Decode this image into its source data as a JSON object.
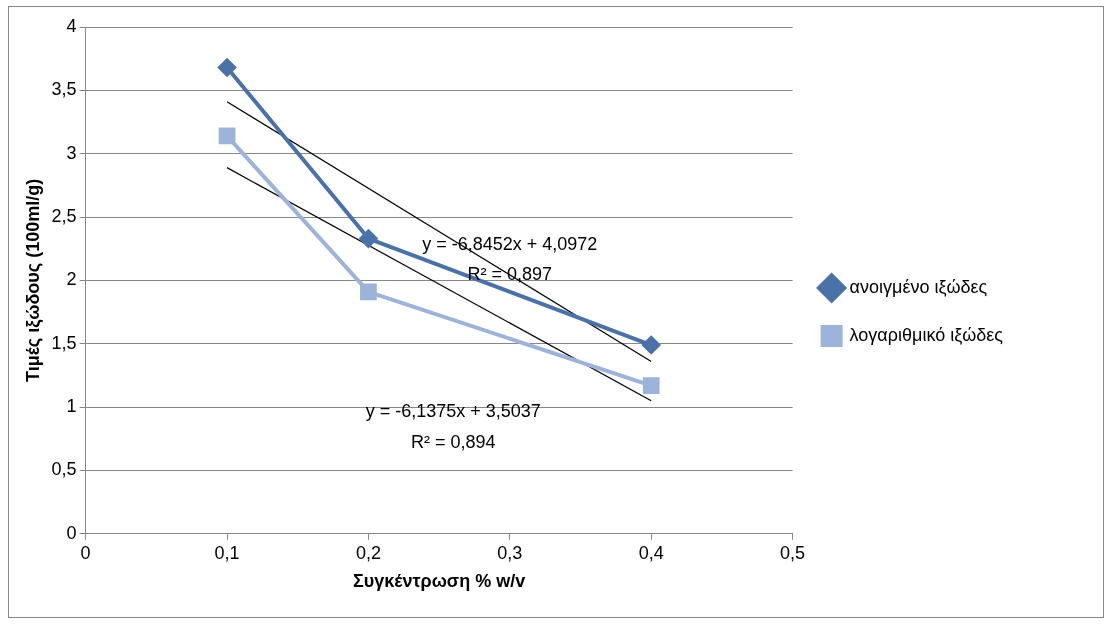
{
  "chart_data": {
    "type": "line",
    "xlabel": "Συγκέντρωση % w/v",
    "ylabel": "Τιμές ιξώδους (100ml/g)",
    "xlim": [
      0,
      0.5
    ],
    "xticks": [
      0,
      {
        "value": 0.1,
        "label": "0,1"
      },
      {
        "value": 0.2,
        "label": "0,2"
      },
      {
        "value": 0.3,
        "label": "0,3"
      },
      {
        "value": 0.4,
        "label": "0,4"
      },
      {
        "value": 0.5,
        "label": "0,5"
      }
    ],
    "ylim": [
      0,
      4
    ],
    "yticks": [
      0,
      {
        "value": 0.5,
        "label": "0,5"
      },
      1,
      {
        "value": 1.5,
        "label": "1,5"
      },
      2,
      {
        "value": 2.5,
        "label": "2,5"
      },
      3,
      {
        "value": 3.5,
        "label": "3,5"
      },
      4
    ],
    "grid": "y",
    "legend": "right",
    "series": [
      {
        "name": "ανοιγμένο ιξώδες",
        "color": "#4a72a8",
        "marker": "diamond",
        "x": [
          0.1,
          0.2,
          0.4
        ],
        "values": [
          3.68,
          2.33,
          1.49
        ]
      },
      {
        "name": "λογαριθμικό ιξώδες",
        "color": "#9db3d9",
        "marker": "square",
        "x": [
          0.1,
          0.2,
          0.4
        ],
        "values": [
          3.14,
          1.91,
          1.17
        ]
      },
      {
        "type": "line",
        "color": "#000000",
        "marker": "none",
        "x": [
          0.1,
          0.4
        ],
        "values": [
          3.41,
          1.36
        ]
      },
      {
        "type": "line",
        "color": "#000000",
        "marker": "none",
        "x": [
          0.1,
          0.4
        ],
        "values": [
          2.89,
          1.05
        ]
      }
    ],
    "annotations": [
      "y = -6,8452x + 4,0972",
      "R² = 0,897",
      "y = -6,1375x + 3,5037",
      "R² = 0,894"
    ]
  }
}
